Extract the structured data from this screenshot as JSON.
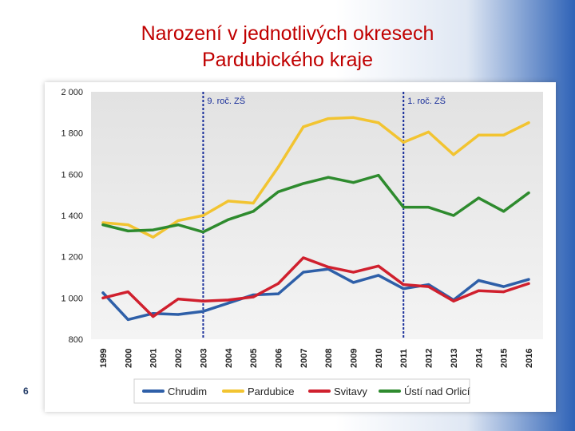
{
  "title": {
    "line1": "Narození v jednotlivých okresech",
    "line2": "Pardubického kraje"
  },
  "page_number": "6",
  "chart_data": {
    "type": "line",
    "title": "Narození v jednotlivých okresech Pardubického kraje",
    "xlabel": "",
    "ylabel": "",
    "ylim": [
      800,
      2000
    ],
    "yticks": [
      800,
      1000,
      1200,
      1400,
      1600,
      1800,
      2000
    ],
    "ytick_labels": [
      "800",
      "1 000",
      "1 200",
      "1 400",
      "1 600",
      "1 800",
      "2 000"
    ],
    "categories": [
      "1999",
      "2000",
      "2001",
      "2002",
      "2003",
      "2004",
      "2005",
      "2006",
      "2007",
      "2008",
      "2009",
      "2010",
      "2011",
      "2012",
      "2013",
      "2014",
      "2015",
      "2016"
    ],
    "series": [
      {
        "name": "Chrudim",
        "color": "#2e5fa8",
        "values": [
          1025,
          895,
          925,
          920,
          935,
          975,
          1015,
          1020,
          1125,
          1140,
          1075,
          1110,
          1045,
          1065,
          990,
          1085,
          1055,
          1090
        ]
      },
      {
        "name": "Pardubice",
        "color": "#f2c431",
        "values": [
          1365,
          1355,
          1295,
          1375,
          1400,
          1470,
          1460,
          1635,
          1830,
          1870,
          1875,
          1850,
          1755,
          1805,
          1695,
          1790,
          1790,
          1850
        ]
      },
      {
        "name": "Svitavy",
        "color": "#d0202e",
        "values": [
          1000,
          1030,
          910,
          995,
          985,
          990,
          1005,
          1070,
          1195,
          1150,
          1125,
          1155,
          1065,
          1055,
          985,
          1035,
          1030,
          1070
        ]
      },
      {
        "name": "Ústí nad Orlicí",
        "color": "#2e8b2e",
        "values": [
          1355,
          1325,
          1330,
          1355,
          1320,
          1380,
          1420,
          1515,
          1555,
          1585,
          1560,
          1595,
          1440,
          1440,
          1400,
          1485,
          1420,
          1510
        ]
      }
    ],
    "annotations": [
      {
        "label": "9. roč. ZŠ",
        "x": "2003",
        "color": "#1a2f9a"
      },
      {
        "label": "1. roč. ZŠ",
        "x": "2011",
        "color": "#1a2f9a"
      }
    ],
    "legend": {
      "position": "bottom"
    },
    "grid": false
  }
}
